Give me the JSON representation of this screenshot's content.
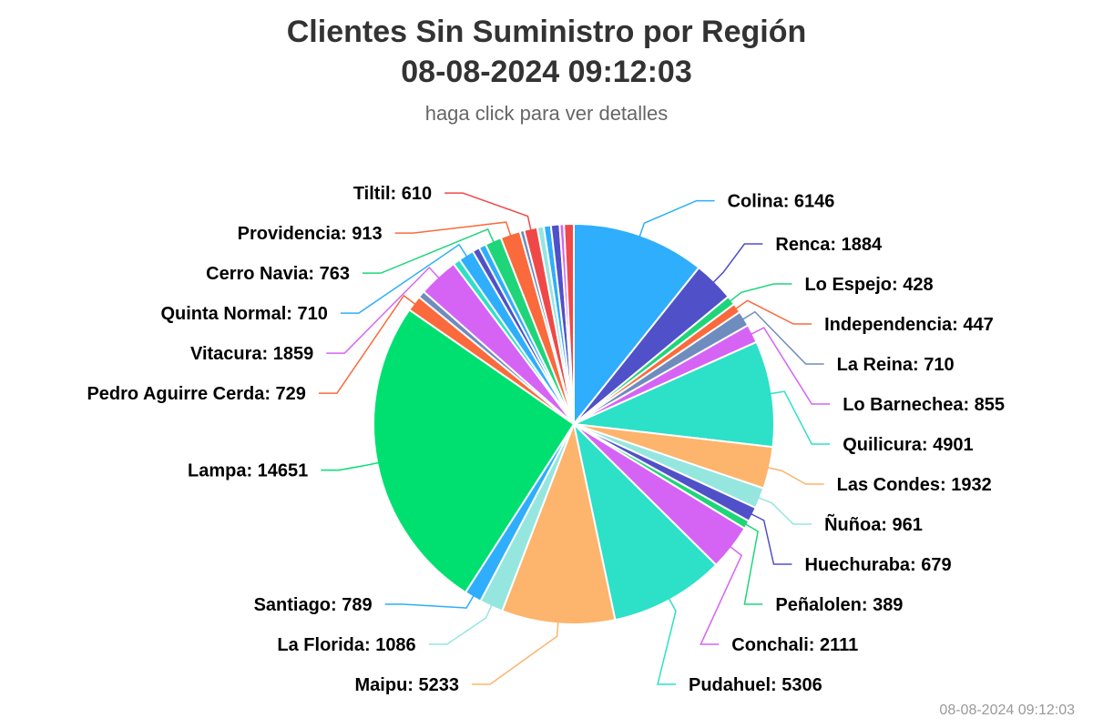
{
  "header": {
    "title_line1": "Clientes Sin Suministro por Región",
    "title_line2": "08-08-2024 09:12:03",
    "subtitle": "haga click para ver detalles"
  },
  "footer": {
    "timestamp": "08-08-2024 09:12:03"
  },
  "chart_data": {
    "type": "pie",
    "title": "Clientes Sin Suministro por Región",
    "subtitle": "haga click para ver detalles",
    "label_format": "{name}: {value}",
    "slices": [
      {
        "name": "Colina",
        "value": 6146,
        "color": "#2eaefc"
      },
      {
        "name": "Renca",
        "value": 1884,
        "color": "#5050c8"
      },
      {
        "name": "Lo Espejo",
        "value": 428,
        "color": "#1fd57a"
      },
      {
        "name": "Independencia",
        "value": 447,
        "color": "#fa6a3c"
      },
      {
        "name": "La Reina",
        "value": 710,
        "color": "#6e8cbe"
      },
      {
        "name": "Lo Barnechea",
        "value": 855,
        "color": "#d564f5"
      },
      {
        "name": "Quilicura",
        "value": 4901,
        "color": "#2de0c8"
      },
      {
        "name": "Las Condes",
        "value": 1932,
        "color": "#fdb46c"
      },
      {
        "name": "Ñuñoa",
        "value": 961,
        "color": "#96e6e0"
      },
      {
        "name": "Huechuraba",
        "value": 679,
        "color": "#5050c8"
      },
      {
        "name": "Peñalolen",
        "value": 389,
        "color": "#1fd57a"
      },
      {
        "name": "Conchali",
        "value": 2111,
        "color": "#d564f5"
      },
      {
        "name": "Pudahuel",
        "value": 5306,
        "color": "#2de0c8"
      },
      {
        "name": "Maipu",
        "value": 5233,
        "color": "#fdb46c"
      },
      {
        "name": "La Florida",
        "value": 1086,
        "color": "#96e6e0"
      },
      {
        "name": "Santiago",
        "value": 789,
        "color": "#2eaefc"
      },
      {
        "name": "Lampa",
        "value": 14651,
        "color": "#00e070"
      },
      {
        "name": "Pedro Aguirre Cerda",
        "value": 729,
        "color": "#fa6a3c"
      },
      {
        "name": "",
        "value": 330,
        "color": "#6e8cbe"
      },
      {
        "name": "Vitacura",
        "value": 1859,
        "color": "#d564f5"
      },
      {
        "name": "",
        "value": 330,
        "color": "#2de0c8"
      },
      {
        "name": "Quinta Normal",
        "value": 710,
        "color": "#2eaefc"
      },
      {
        "name": "",
        "value": 330,
        "color": "#5050c8"
      },
      {
        "name": "",
        "value": 330,
        "color": "#2eaefc"
      },
      {
        "name": "Cerro Navia",
        "value": 763,
        "color": "#1fd57a"
      },
      {
        "name": "Providencia",
        "value": 913,
        "color": "#fa6a3c"
      },
      {
        "name": "",
        "value": 200,
        "color": "#6e8cbe"
      },
      {
        "name": "Tiltil",
        "value": 610,
        "color": "#f04848"
      },
      {
        "name": "",
        "value": 300,
        "color": "#96e6e0"
      },
      {
        "name": "",
        "value": 330,
        "color": "#2eaefc"
      },
      {
        "name": "",
        "value": 400,
        "color": "#5050c8"
      },
      {
        "name": "",
        "value": 200,
        "color": "#d564f5"
      },
      {
        "name": "",
        "value": 450,
        "color": "#f04848"
      }
    ]
  }
}
